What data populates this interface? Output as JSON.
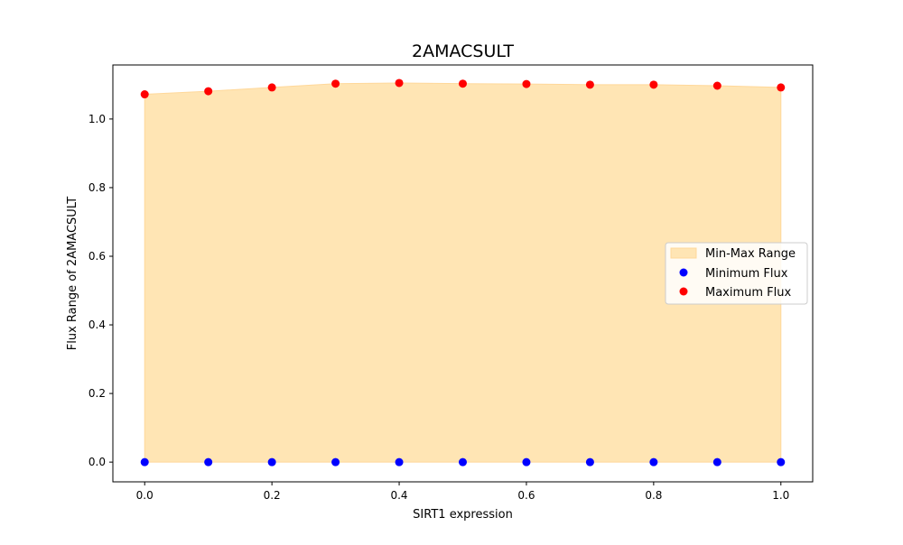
{
  "chart_data": {
    "type": "scatter",
    "title": "2AMACSULT",
    "xlabel": "SIRT1 expression",
    "ylabel": "Flux Range of 2AMACSULT",
    "xlim": [
      -0.05,
      1.05
    ],
    "ylim": [
      -0.0575,
      1.1575
    ],
    "x_ticks": [
      0.0,
      0.2,
      0.4,
      0.6,
      0.8,
      1.0
    ],
    "x_tick_labels": [
      "0.0",
      "0.2",
      "0.4",
      "0.6",
      "0.8",
      "1.0"
    ],
    "y_ticks": [
      0.0,
      0.2,
      0.4,
      0.6,
      0.8,
      1.0
    ],
    "y_tick_labels": [
      "0.0",
      "0.2",
      "0.4",
      "0.6",
      "0.8",
      "1.0"
    ],
    "grid": false,
    "legend_position": "center-right",
    "x": [
      0.0,
      0.1,
      0.2,
      0.3,
      0.4,
      0.5,
      0.6,
      0.7,
      0.8,
      0.9,
      1.0
    ],
    "series": [
      {
        "name": "Min-Max Range",
        "kind": "fill_between",
        "color": "#FFE5B4"
      },
      {
        "name": "Minimum Flux",
        "kind": "scatter",
        "color": "#0000FF",
        "values": [
          0,
          0,
          0,
          0,
          0,
          0,
          0,
          0,
          0,
          0,
          0
        ]
      },
      {
        "name": "Maximum Flux",
        "kind": "scatter",
        "color": "#FF0000",
        "values": [
          1.072,
          1.081,
          1.092,
          1.103,
          1.105,
          1.103,
          1.102,
          1.1,
          1.1,
          1.097,
          1.092
        ]
      }
    ]
  }
}
